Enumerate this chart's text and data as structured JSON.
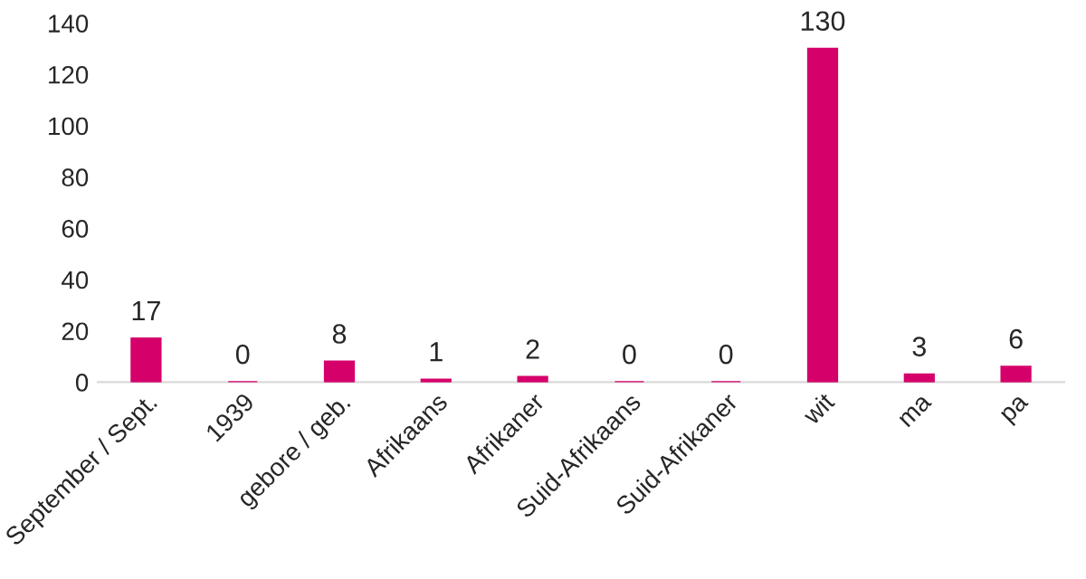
{
  "chart_data": {
    "type": "bar",
    "categories": [
      "September / Sept.",
      "1939",
      "gebore / geb.",
      "Afrikaans",
      "Afrikaner",
      "Suid-Afrikaans",
      "Suid-Afrikaner",
      "wit",
      "ma",
      "pa"
    ],
    "values": [
      17,
      0,
      8,
      1,
      2,
      0,
      0,
      130,
      3,
      6
    ],
    "color": "#d6006b",
    "ylim": [
      0,
      140
    ],
    "yticks": [
      0,
      20,
      40,
      60,
      80,
      100,
      120,
      140
    ],
    "grid": false,
    "data_labels": true
  }
}
